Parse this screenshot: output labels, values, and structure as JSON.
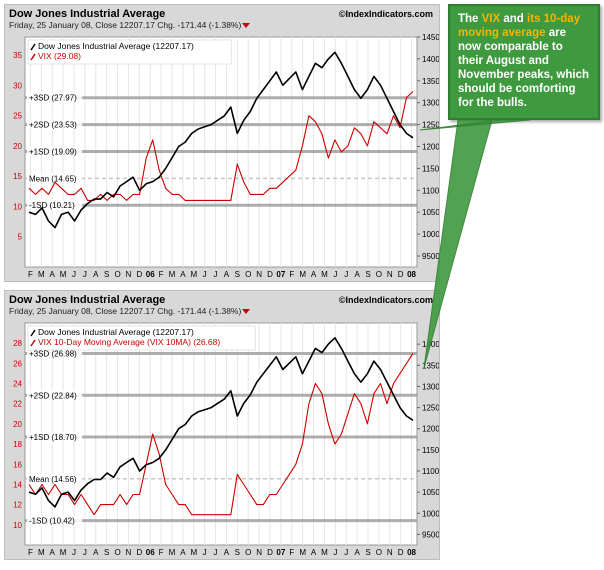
{
  "annotation": {
    "parts": [
      {
        "text": "The ",
        "highlight": false
      },
      {
        "text": "VIX",
        "highlight": true
      },
      {
        "text": " and ",
        "highlight": false
      },
      {
        "text": "its 10-day moving average",
        "highlight": true
      },
      {
        "text": " are now comparable to their August and November peaks, which should be comforting for the bulls.",
        "highlight": false
      }
    ]
  },
  "chart_data": [
    {
      "type": "line",
      "title": "Dow Jones Industrial Average",
      "subtitle": "Friday, 25 January 08, Close 12207.17 Chg. -171.44 (-1.38%)",
      "watermark": "©IndexIndicators.com",
      "legend": [
        "Dow Jones Industrial Average (12207.17)",
        "VIX (29.08)"
      ],
      "series_colors": [
        "#000000",
        "#cc0000"
      ],
      "y_left": {
        "min": 0,
        "max": 38,
        "ticks": [
          5,
          10,
          15,
          20,
          25,
          30,
          35
        ]
      },
      "y_right": {
        "min": 9250,
        "max": 14500,
        "ticks": [
          9500,
          10000,
          10500,
          11000,
          11500,
          12000,
          12500,
          13000,
          13500,
          14000,
          14500
        ]
      },
      "x_ticks": [
        "F",
        "M",
        "A",
        "M",
        "J",
        "J",
        "A",
        "S",
        "O",
        "N",
        "D",
        "06",
        "F",
        "M",
        "A",
        "M",
        "J",
        "J",
        "A",
        "S",
        "O",
        "N",
        "D",
        "07",
        "F",
        "M",
        "A",
        "M",
        "J",
        "J",
        "A",
        "S",
        "O",
        "N",
        "D",
        "08"
      ],
      "sd_lines": [
        {
          "label": "+3SD (27.97)",
          "value": 27.97
        },
        {
          "label": "+2SD (23.53)",
          "value": 23.53
        },
        {
          "label": "+1SD (19.09)",
          "value": 19.09
        },
        {
          "label": "Mean (14.65)",
          "value": 14.65
        },
        {
          "label": "-1SD (10.21)",
          "value": 10.21
        }
      ],
      "series": [
        {
          "name": "Dow Jones Industrial Average (12207.17)",
          "axis": "right",
          "values": [
            10500,
            10450,
            10600,
            10300,
            10150,
            10450,
            10500,
            10300,
            10550,
            10700,
            10800,
            10800,
            10950,
            10850,
            11100,
            11200,
            11300,
            11000,
            11150,
            11200,
            11300,
            11500,
            11750,
            12000,
            12100,
            12300,
            12400,
            12450,
            12500,
            12600,
            12700,
            12900,
            12300,
            12600,
            12800,
            13100,
            13300,
            13500,
            13700,
            13400,
            13550,
            13700,
            13300,
            13600,
            13900,
            13800,
            14000,
            14150,
            13900,
            13600,
            13300,
            13100,
            13300,
            13600,
            13400,
            13100,
            12800,
            12500,
            12300,
            12200
          ]
        },
        {
          "name": "VIX (29.08)",
          "axis": "left",
          "values": [
            13,
            12,
            13,
            12,
            14,
            13,
            12,
            12,
            13,
            11,
            11,
            12,
            11,
            12,
            12,
            11,
            12,
            12,
            18,
            21,
            16,
            13,
            12,
            12,
            11,
            11,
            11,
            11,
            11,
            11,
            11,
            11,
            17,
            14,
            12,
            12,
            12,
            13,
            13,
            14,
            15,
            16,
            20,
            25,
            24,
            22,
            18,
            21,
            19,
            20,
            23,
            22,
            20,
            24,
            23,
            22,
            25,
            23,
            28,
            29
          ]
        }
      ]
    },
    {
      "type": "line",
      "title": "Dow Jones Industrial Average",
      "subtitle": "Friday, 25 January 08, Close 12207.17 Chg. -171.44 (-1.38%)",
      "watermark": "©IndexIndicators.com",
      "legend": [
        "Dow Jones Industrial Average (12207.17)",
        "VIX 10-Day Moving Average (VIX 10MA) (26.68)"
      ],
      "series_colors": [
        "#000000",
        "#cc0000"
      ],
      "y_left": {
        "min": 8,
        "max": 30,
        "ticks": [
          10,
          12,
          14,
          16,
          18,
          20,
          22,
          24,
          26,
          28
        ]
      },
      "y_right": {
        "min": 9250,
        "max": 14500,
        "ticks": [
          9500,
          10000,
          10500,
          11000,
          11500,
          12000,
          12500,
          13000,
          13500,
          14000
        ]
      },
      "x_ticks": [
        "F",
        "M",
        "A",
        "M",
        "J",
        "J",
        "A",
        "S",
        "O",
        "N",
        "D",
        "06",
        "F",
        "M",
        "A",
        "M",
        "J",
        "J",
        "A",
        "S",
        "O",
        "N",
        "D",
        "07",
        "F",
        "M",
        "A",
        "M",
        "J",
        "J",
        "A",
        "S",
        "O",
        "N",
        "D",
        "08"
      ],
      "sd_lines": [
        {
          "label": "+3SD (26.98)",
          "value": 26.98
        },
        {
          "label": "+2SD (22.84)",
          "value": 22.84
        },
        {
          "label": "+1SD (18.70)",
          "value": 18.7
        },
        {
          "label": "Mean (14.56)",
          "value": 14.56
        },
        {
          "label": "-1SD (10.42)",
          "value": 10.42
        }
      ],
      "series": [
        {
          "name": "Dow Jones Industrial Average (12207.17)",
          "axis": "right",
          "values": [
            10500,
            10450,
            10600,
            10300,
            10150,
            10450,
            10500,
            10300,
            10550,
            10700,
            10800,
            10800,
            10950,
            10850,
            11100,
            11200,
            11300,
            11000,
            11150,
            11200,
            11300,
            11500,
            11750,
            12000,
            12100,
            12300,
            12400,
            12450,
            12500,
            12600,
            12700,
            12900,
            12300,
            12600,
            12800,
            13100,
            13300,
            13500,
            13700,
            13400,
            13550,
            13700,
            13300,
            13600,
            13900,
            13800,
            14000,
            14150,
            13900,
            13600,
            13300,
            13100,
            13300,
            13600,
            13400,
            13100,
            12800,
            12500,
            12300,
            12200
          ]
        },
        {
          "name": "VIX 10-Day Moving Average (VIX 10MA) (26.68)",
          "axis": "left",
          "values": [
            14,
            13,
            14,
            13,
            14,
            13,
            13,
            12,
            13,
            12,
            11,
            12,
            12,
            12,
            13,
            12,
            13,
            13,
            16,
            19,
            17,
            14,
            13,
            12,
            12,
            11,
            11,
            11,
            11,
            11,
            11,
            11,
            15,
            14,
            13,
            12,
            12,
            13,
            13,
            14,
            15,
            16,
            18,
            22,
            24,
            23,
            20,
            18,
            19,
            21,
            23,
            22,
            20,
            23,
            24,
            22,
            24,
            25,
            26,
            27
          ]
        }
      ]
    }
  ]
}
